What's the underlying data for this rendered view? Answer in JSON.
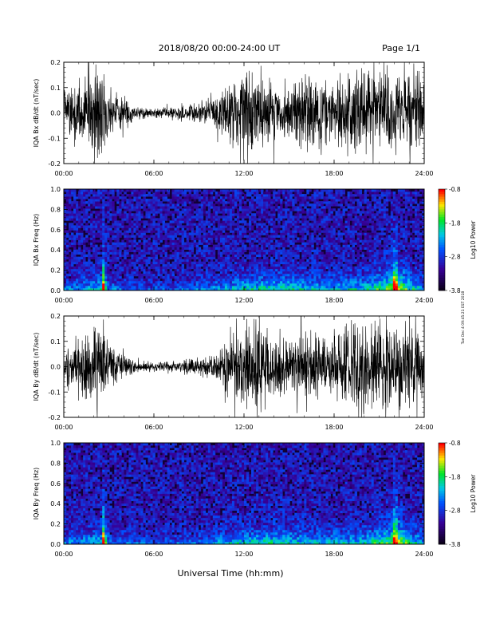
{
  "header": {
    "title": "2018/08/20   00:00-24:00 UT",
    "page": "Page 1/1"
  },
  "footer": {
    "xlabel": "Universal Time (hh:mm)",
    "side_note": "Tue Dec 4 09:45:21 EST 2018"
  },
  "chart_data": [
    {
      "type": "line",
      "panel": "IQA Bx dB/dt",
      "ylabel": "IQA Bx dB/dt (nT/sec)",
      "ylim": [
        -0.2,
        0.2
      ],
      "yticks": [
        "-0.2",
        "-0.1",
        "0.0",
        "0.1",
        "0.2"
      ],
      "xlim": [
        0,
        24
      ],
      "xticks": [
        "00:00",
        "06:00",
        "12:00",
        "18:00",
        "24:00"
      ],
      "envelope": {
        "hours": [
          0,
          1,
          2,
          2.5,
          3,
          4,
          5,
          6,
          7,
          8,
          9,
          10,
          11,
          12,
          13,
          14,
          15,
          16,
          17,
          18,
          19,
          20,
          21,
          22,
          23,
          24
        ],
        "amplitude": [
          0.12,
          0.13,
          0.2,
          0.2,
          0.12,
          0.06,
          0.03,
          0.02,
          0.025,
          0.04,
          0.05,
          0.07,
          0.14,
          0.2,
          0.16,
          0.13,
          0.12,
          0.2,
          0.14,
          0.13,
          0.2,
          0.2,
          0.18,
          0.2,
          0.2,
          0.14
        ]
      }
    },
    {
      "type": "heatmap",
      "panel": "IQA Bx Freq",
      "ylabel": "IQA Bx Freq (Hz)",
      "ylim": [
        0.0,
        1.0
      ],
      "yticks": [
        "0.0",
        "0.2",
        "0.4",
        "0.6",
        "0.8",
        "1.0"
      ],
      "xlim": [
        0,
        24
      ],
      "xticks": [
        "00:00",
        "06:00",
        "12:00",
        "18:00",
        "24:00"
      ],
      "colorbar": {
        "label": "Log10 Power",
        "range": [
          -3.8,
          -0.8
        ],
        "ticks": [
          "-0.8",
          "-1.8",
          "-2.8",
          "-3.8"
        ]
      },
      "activity": {
        "hours": [
          0,
          2.5,
          2.6,
          3,
          6,
          9,
          12,
          14,
          16,
          18,
          20,
          21.9,
          22,
          23,
          24
        ],
        "level": [
          0.3,
          0.5,
          1.0,
          0.3,
          0.2,
          0.3,
          0.5,
          0.55,
          0.5,
          0.45,
          0.5,
          0.8,
          1.0,
          0.6,
          0.4
        ]
      }
    },
    {
      "type": "line",
      "panel": "IQA By dB/dt",
      "ylabel": "IQA By dB/dt (nT/sec)",
      "ylim": [
        -0.2,
        0.2
      ],
      "yticks": [
        "-0.2",
        "-0.1",
        "0.0",
        "0.1",
        "0.2"
      ],
      "xlim": [
        0,
        24
      ],
      "xticks": [
        "00:00",
        "06:00",
        "12:00",
        "18:00",
        "24:00"
      ],
      "envelope": {
        "hours": [
          0,
          1,
          2,
          2.5,
          3,
          4,
          5,
          6,
          7,
          8,
          9,
          10,
          11,
          12,
          13,
          14,
          15,
          16,
          17,
          18,
          19,
          20,
          21,
          22,
          23,
          24
        ],
        "amplitude": [
          0.09,
          0.12,
          0.2,
          0.2,
          0.1,
          0.05,
          0.025,
          0.02,
          0.025,
          0.035,
          0.05,
          0.06,
          0.12,
          0.2,
          0.2,
          0.13,
          0.12,
          0.18,
          0.14,
          0.12,
          0.2,
          0.2,
          0.2,
          0.2,
          0.2,
          0.13
        ]
      }
    },
    {
      "type": "heatmap",
      "panel": "IQA By Freq",
      "ylabel": "IQA By Freq (Hz)",
      "ylim": [
        0.0,
        1.0
      ],
      "yticks": [
        "0.0",
        "0.2",
        "0.4",
        "0.6",
        "0.8",
        "1.0"
      ],
      "xlim": [
        0,
        24
      ],
      "xticks": [
        "00:00",
        "06:00",
        "12:00",
        "18:00",
        "24:00"
      ],
      "colorbar": {
        "label": "Log10 Power",
        "range": [
          -3.8,
          -0.8
        ],
        "ticks": [
          "-0.8",
          "-1.8",
          "-2.8",
          "-3.8"
        ]
      },
      "activity": {
        "hours": [
          0,
          2.5,
          2.6,
          3,
          6,
          9,
          12,
          14,
          16,
          18,
          20,
          21.9,
          22,
          23,
          24
        ],
        "level": [
          0.3,
          0.5,
          1.0,
          0.3,
          0.2,
          0.3,
          0.5,
          0.55,
          0.5,
          0.45,
          0.5,
          0.8,
          1.0,
          0.6,
          0.4
        ]
      }
    }
  ]
}
